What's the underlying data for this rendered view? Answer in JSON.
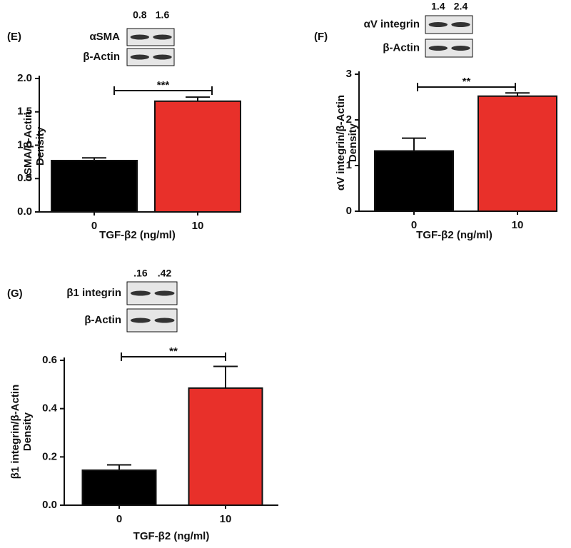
{
  "chart_data": [
    {
      "type": "bar",
      "panel": "(E)",
      "blot": {
        "lane_labels": [
          "0.8",
          "1.6"
        ],
        "row_labels": [
          "αSMA",
          "β-Actin"
        ]
      },
      "ylabel": [
        "αSMA/β-Actin",
        "Density"
      ],
      "xlabel": "TGF-β2 (ng/ml)",
      "categories": [
        "0",
        "10"
      ],
      "values": [
        0.77,
        1.66
      ],
      "errors": [
        0.04,
        0.06
      ],
      "colors": [
        "#000000",
        "#e8302a"
      ],
      "ylim": [
        0,
        2.0
      ],
      "yticks": [
        {
          "value": 0,
          "label": "0.0"
        },
        {
          "value": 0.5,
          "label": "0.5"
        },
        {
          "value": 1.0,
          "label": "1.0"
        },
        {
          "value": 1.5,
          "label": "1.5"
        },
        {
          "value": 2.0,
          "label": "2.0"
        }
      ],
      "significance": "***"
    },
    {
      "type": "bar",
      "panel": "(F)",
      "blot": {
        "lane_labels": [
          "1.4",
          "2.4"
        ],
        "row_labels": [
          "αV integrin",
          "β-Actin"
        ]
      },
      "ylabel": [
        "αV integrin/β-Actin",
        "Density"
      ],
      "xlabel": "TGF-β2 (ng/ml)",
      "categories": [
        "0",
        "10"
      ],
      "values": [
        1.32,
        2.52
      ],
      "errors": [
        0.28,
        0.07
      ],
      "colors": [
        "#000000",
        "#e8302a"
      ],
      "ylim": [
        0,
        3
      ],
      "yticks": [
        0,
        1,
        2,
        3
      ],
      "significance": "**"
    },
    {
      "type": "bar",
      "panel": "(G)",
      "blot": {
        "lane_labels": [
          ".16",
          ".42"
        ],
        "row_labels": [
          "β1 integrin",
          "β-Actin"
        ]
      },
      "ylabel": [
        "β1 integrin/β-Actin",
        "Density"
      ],
      "xlabel": "TGF-β2 (ng/ml)",
      "categories": [
        "0",
        "10"
      ],
      "values": [
        0.145,
        0.485
      ],
      "errors": [
        0.022,
        0.09
      ],
      "colors": [
        "#000000",
        "#e8302a"
      ],
      "ylim": [
        0,
        0.6
      ],
      "yticks": [
        {
          "value": 0,
          "label": "0.0"
        },
        {
          "value": 0.2,
          "label": "0.2"
        },
        {
          "value": 0.4,
          "label": "0.4"
        },
        {
          "value": 0.6,
          "label": "0.6"
        }
      ],
      "significance": "**"
    }
  ]
}
